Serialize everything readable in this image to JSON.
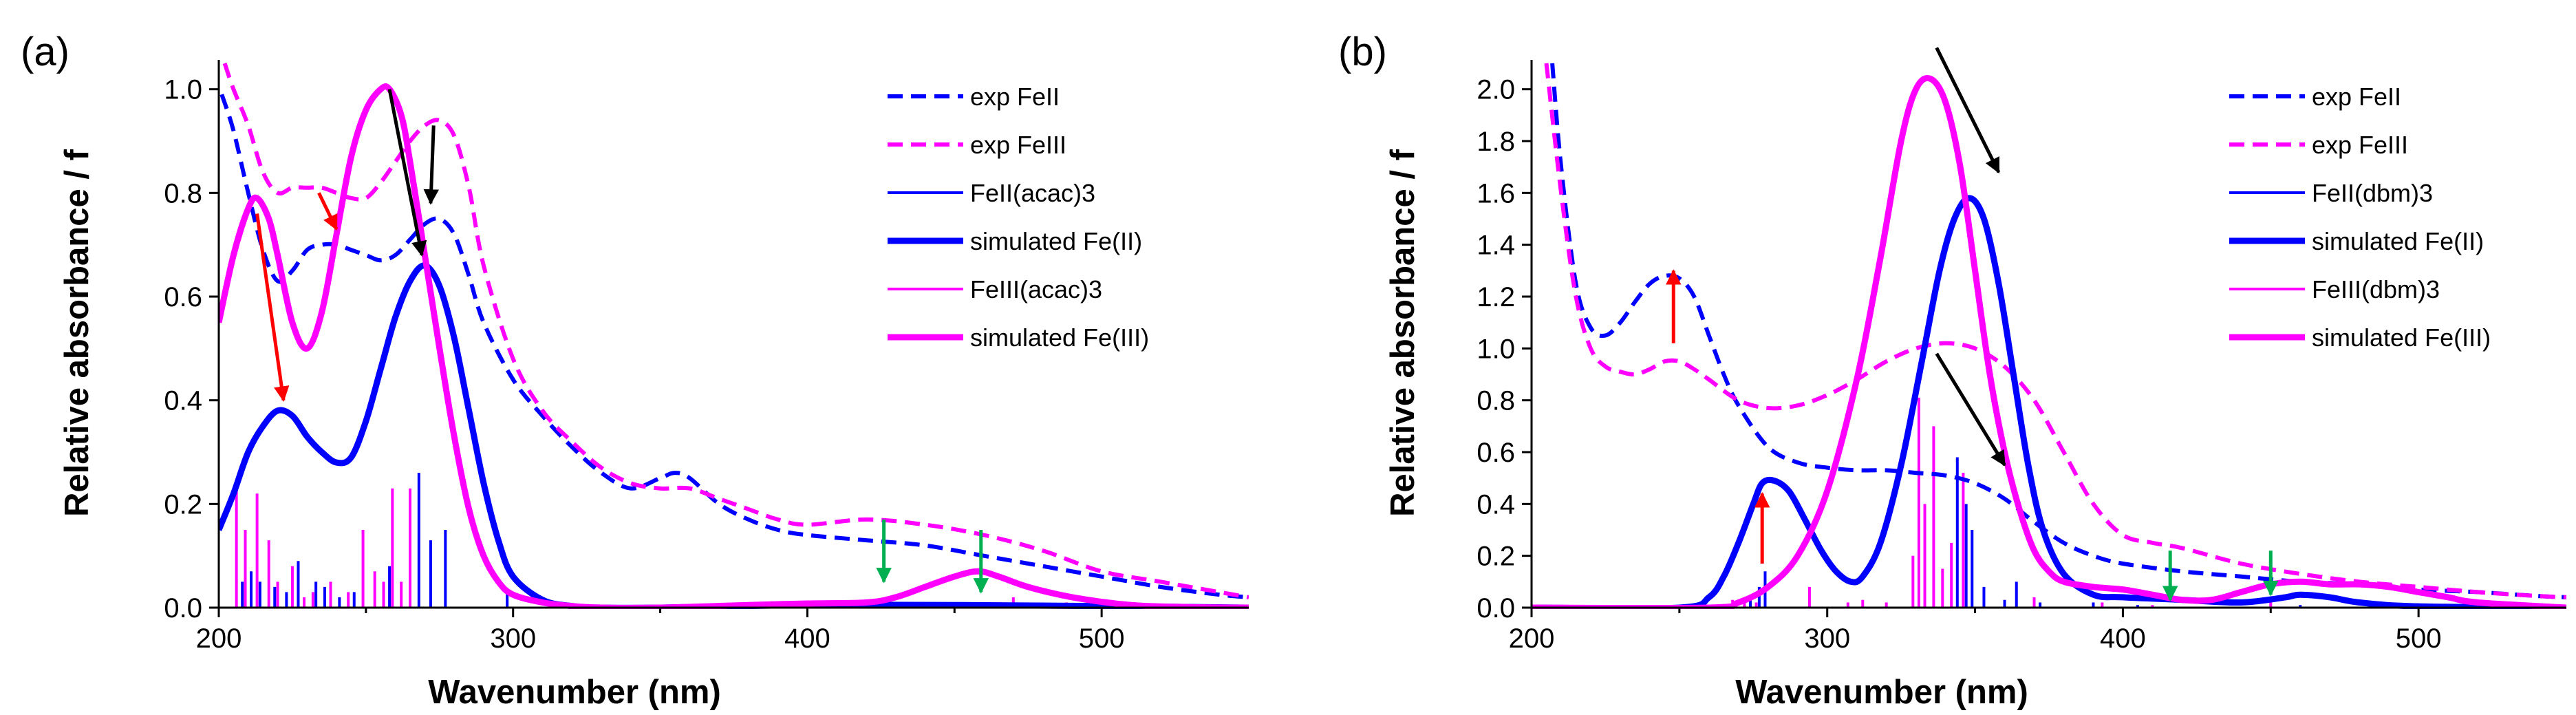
{
  "chart_data": [
    {
      "type": "line",
      "panel_label": "(a)",
      "xlabel": "Wavenumber (nm)",
      "ylabel": "Relative absorbance / f",
      "xlim": [
        200,
        550
      ],
      "ylim": [
        0,
        1.05
      ],
      "xticks": [
        "200",
        "300",
        "400",
        "500"
      ],
      "yticks": [
        "0.0",
        "0.2",
        "0.4",
        "0.6",
        "0.8",
        "1.0"
      ],
      "colors": {
        "fe2": "#0000ff",
        "fe3": "#ff00ff"
      },
      "legend": [
        {
          "label": "exp FeII",
          "style": "dashed",
          "color": "#0000ff"
        },
        {
          "label": "exp FeIII",
          "style": "dashed",
          "color": "#ff00ff"
        },
        {
          "label": "FeII(acac)3",
          "style": "thin",
          "color": "#0000ff"
        },
        {
          "label": "simulated Fe(II)",
          "style": "thick",
          "color": "#0000ff"
        },
        {
          "label": "FeIII(acac)3",
          "style": "thin",
          "color": "#ff00ff"
        },
        {
          "label": "simulated Fe(III)",
          "style": "thick",
          "color": "#ff00ff"
        }
      ],
      "series": [
        {
          "name": "exp FeII",
          "color": "#0000ff",
          "style": "dashed",
          "x": [
            201,
            205,
            210,
            215,
            220,
            225,
            230,
            235,
            240,
            245,
            250,
            255,
            260,
            265,
            270,
            275,
            280,
            285,
            290,
            300,
            310,
            320,
            330,
            340,
            350,
            355,
            360,
            370,
            380,
            390,
            400,
            420,
            440,
            460,
            480,
            500,
            520,
            540,
            550
          ],
          "y": [
            0.99,
            0.92,
            0.8,
            0.69,
            0.63,
            0.65,
            0.69,
            0.7,
            0.7,
            0.69,
            0.68,
            0.67,
            0.68,
            0.71,
            0.74,
            0.75,
            0.72,
            0.64,
            0.55,
            0.44,
            0.37,
            0.31,
            0.26,
            0.23,
            0.25,
            0.26,
            0.25,
            0.2,
            0.17,
            0.15,
            0.14,
            0.13,
            0.12,
            0.1,
            0.08,
            0.06,
            0.04,
            0.025,
            0.02
          ]
        },
        {
          "name": "exp FeIII",
          "color": "#ff00ff",
          "style": "dashed",
          "x": [
            202,
            205,
            210,
            215,
            220,
            225,
            230,
            235,
            240,
            245,
            250,
            255,
            260,
            265,
            270,
            275,
            280,
            285,
            290,
            300,
            310,
            320,
            330,
            340,
            350,
            360,
            370,
            380,
            390,
            400,
            420,
            440,
            460,
            480,
            500,
            520,
            540,
            550
          ],
          "y": [
            1.05,
            1.0,
            0.93,
            0.84,
            0.8,
            0.81,
            0.81,
            0.81,
            0.8,
            0.79,
            0.79,
            0.82,
            0.86,
            0.9,
            0.93,
            0.94,
            0.91,
            0.81,
            0.66,
            0.48,
            0.38,
            0.32,
            0.27,
            0.24,
            0.23,
            0.23,
            0.21,
            0.19,
            0.17,
            0.16,
            0.17,
            0.16,
            0.14,
            0.11,
            0.07,
            0.05,
            0.03,
            0.02
          ]
        },
        {
          "name": "simulated Fe(II)",
          "color": "#0000ff",
          "style": "thick",
          "x": [
            200,
            205,
            210,
            215,
            220,
            225,
            230,
            235,
            240,
            245,
            250,
            255,
            260,
            265,
            270,
            275,
            280,
            285,
            290,
            295,
            300,
            310,
            320,
            330,
            350,
            400,
            450,
            500,
            550
          ],
          "y": [
            0.15,
            0.22,
            0.3,
            0.35,
            0.38,
            0.37,
            0.33,
            0.3,
            0.28,
            0.29,
            0.36,
            0.46,
            0.56,
            0.63,
            0.66,
            0.62,
            0.52,
            0.38,
            0.24,
            0.13,
            0.06,
            0.015,
            0.003,
            0.0,
            0.0,
            0.005,
            0.005,
            0.003,
            0.0
          ]
        },
        {
          "name": "simulated Fe(III)",
          "color": "#ff00ff",
          "style": "thick",
          "x": [
            200,
            205,
            210,
            213,
            217,
            220,
            225,
            230,
            235,
            240,
            245,
            250,
            255,
            258,
            262,
            265,
            270,
            275,
            280,
            285,
            290,
            295,
            300,
            310,
            320,
            330,
            350,
            380,
            400,
            420,
            430,
            440,
            450,
            458,
            465,
            475,
            490,
            510,
            530,
            550
          ],
          "y": [
            0.55,
            0.68,
            0.77,
            0.79,
            0.75,
            0.68,
            0.55,
            0.5,
            0.57,
            0.72,
            0.87,
            0.96,
            1.0,
            1.0,
            0.95,
            0.86,
            0.68,
            0.5,
            0.33,
            0.19,
            0.1,
            0.05,
            0.025,
            0.01,
            0.003,
            0.0,
            0.0,
            0.005,
            0.008,
            0.01,
            0.02,
            0.04,
            0.06,
            0.07,
            0.06,
            0.04,
            0.02,
            0.005,
            0.001,
            0.0
          ]
        }
      ],
      "sticks": [
        {
          "series": "FeII(acac)3",
          "color": "#0000ff",
          "x": [
            208,
            211,
            214,
            219,
            223,
            227,
            233,
            236,
            241,
            246,
            258,
            268,
            272,
            277,
            298
          ],
          "f": [
            0.05,
            0.07,
            0.05,
            0.04,
            0.03,
            0.09,
            0.05,
            0.04,
            0.02,
            0.03,
            0.08,
            0.26,
            0.13,
            0.15,
            0.03
          ]
        },
        {
          "series": "FeIII(acac)3",
          "color": "#ff00ff",
          "x": [
            206,
            209,
            213,
            217,
            220,
            225,
            229,
            232,
            238,
            244,
            249,
            253,
            256,
            259,
            262,
            265,
            470,
            480,
            488
          ],
          "f": [
            0.23,
            0.15,
            0.22,
            0.13,
            0.05,
            0.08,
            0.02,
            0.03,
            0.05,
            0.03,
            0.15,
            0.07,
            0.05,
            0.23,
            0.05,
            0.23,
            0.02,
            0.01,
            0.01
          ]
        }
      ],
      "arrows": [
        {
          "color": "#ff0000",
          "from": [
            213,
            0.76
          ],
          "to": [
            222,
            0.4
          ]
        },
        {
          "color": "#ff0000",
          "from": [
            234,
            0.8
          ],
          "to": [
            240,
            0.73
          ]
        },
        {
          "color": "#000000",
          "from": [
            258,
            1.0
          ],
          "to": [
            269,
            0.68
          ]
        },
        {
          "color": "#000000",
          "from": [
            273,
            0.93
          ],
          "to": [
            272,
            0.78
          ]
        },
        {
          "color": "#00b050",
          "from": [
            426,
            0.17
          ],
          "to": [
            426,
            0.05
          ]
        },
        {
          "color": "#00b050",
          "from": [
            459,
            0.15
          ],
          "to": [
            459,
            0.03
          ]
        }
      ]
    },
    {
      "type": "line",
      "panel_label": "(b)",
      "xlabel": "Wavenumber (nm)",
      "ylabel": "Relative absorbance / f",
      "xlim": [
        200,
        550
      ],
      "ylim": [
        0,
        2.1
      ],
      "xticks": [
        "200",
        "300",
        "400",
        "500"
      ],
      "yticks": [
        "0.0",
        "0.2",
        "0.4",
        "0.6",
        "0.8",
        "1.0",
        "1.2",
        "1.4",
        "1.6",
        "1.8",
        "2.0"
      ],
      "colors": {
        "fe2": "#0000ff",
        "fe3": "#ff00ff"
      },
      "legend": [
        {
          "label": "exp FeII",
          "style": "dashed",
          "color": "#0000ff"
        },
        {
          "label": "exp FeIII",
          "style": "dashed",
          "color": "#ff00ff"
        },
        {
          "label": "FeII(dbm)3",
          "style": "thin",
          "color": "#0000ff"
        },
        {
          "label": "simulated Fe(II)",
          "style": "thick",
          "color": "#0000ff"
        },
        {
          "label": "FeIII(dbm)3",
          "style": "thin",
          "color": "#ff00ff"
        },
        {
          "label": "simulated Fe(III)",
          "style": "thick",
          "color": "#ff00ff"
        }
      ],
      "series": [
        {
          "name": "exp FeII",
          "color": "#0000ff",
          "style": "dashed",
          "x": [
            207,
            210,
            215,
            220,
            225,
            230,
            235,
            240,
            245,
            250,
            255,
            260,
            265,
            270,
            280,
            290,
            300,
            310,
            320,
            330,
            340,
            350,
            360,
            370,
            380,
            390,
            400,
            420,
            440,
            460,
            480,
            500,
            520,
            540,
            550
          ],
          "y": [
            2.1,
            1.7,
            1.25,
            1.08,
            1.05,
            1.1,
            1.18,
            1.25,
            1.28,
            1.27,
            1.2,
            1.05,
            0.9,
            0.78,
            0.62,
            0.56,
            0.54,
            0.53,
            0.53,
            0.52,
            0.51,
            0.48,
            0.42,
            0.33,
            0.25,
            0.2,
            0.17,
            0.14,
            0.12,
            0.1,
            0.09,
            0.07,
            0.06,
            0.045,
            0.04
          ]
        },
        {
          "name": "exp FeIII",
          "color": "#ff00ff",
          "style": "dashed",
          "x": [
            205,
            210,
            215,
            220,
            225,
            230,
            235,
            240,
            245,
            250,
            255,
            260,
            270,
            280,
            290,
            300,
            310,
            320,
            330,
            340,
            350,
            360,
            370,
            380,
            390,
            400,
            410,
            420,
            440,
            460,
            480,
            500,
            520,
            540,
            550
          ],
          "y": [
            2.1,
            1.6,
            1.2,
            1.0,
            0.93,
            0.91,
            0.9,
            0.92,
            0.95,
            0.95,
            0.92,
            0.88,
            0.8,
            0.77,
            0.78,
            0.82,
            0.88,
            0.95,
            1.0,
            1.02,
            1.0,
            0.93,
            0.8,
            0.6,
            0.4,
            0.28,
            0.25,
            0.23,
            0.17,
            0.13,
            0.1,
            0.08,
            0.06,
            0.045,
            0.04
          ]
        },
        {
          "name": "simulated Fe(II)",
          "color": "#0000ff",
          "style": "thick",
          "x": [
            200,
            250,
            260,
            265,
            270,
            275,
            278,
            282,
            287,
            292,
            298,
            303,
            308,
            312,
            318,
            325,
            332,
            338,
            343,
            348,
            353,
            358,
            363,
            368,
            373,
            380,
            390,
            400,
            420,
            440,
            455,
            460,
            470,
            480,
            500,
            550
          ],
          "y": [
            0.0,
            0.0,
            0.04,
            0.12,
            0.25,
            0.4,
            0.48,
            0.49,
            0.45,
            0.35,
            0.22,
            0.14,
            0.1,
            0.12,
            0.25,
            0.55,
            0.95,
            1.3,
            1.5,
            1.58,
            1.5,
            1.25,
            0.9,
            0.55,
            0.3,
            0.13,
            0.05,
            0.04,
            0.03,
            0.02,
            0.04,
            0.05,
            0.04,
            0.02,
            0.005,
            0.0
          ]
        },
        {
          "name": "simulated Fe(III)",
          "color": "#ff00ff",
          "style": "thick",
          "x": [
            200,
            260,
            270,
            280,
            290,
            300,
            310,
            318,
            325,
            330,
            335,
            340,
            345,
            350,
            355,
            360,
            365,
            370,
            375,
            380,
            390,
            400,
            410,
            420,
            430,
            440,
            450,
            460,
            470,
            480,
            490,
            500,
            510,
            520,
            550
          ],
          "y": [
            0.0,
            0.0,
            0.02,
            0.08,
            0.2,
            0.45,
            0.88,
            1.35,
            1.8,
            2.0,
            2.04,
            1.95,
            1.7,
            1.3,
            0.9,
            0.6,
            0.38,
            0.22,
            0.14,
            0.1,
            0.08,
            0.07,
            0.05,
            0.03,
            0.03,
            0.06,
            0.09,
            0.1,
            0.09,
            0.09,
            0.08,
            0.06,
            0.04,
            0.02,
            0.0
          ]
        }
      ],
      "sticks": [
        {
          "series": "FeII(dbm)3",
          "color": "#0000ff",
          "x": [
            274,
            277,
            279,
            344,
            347,
            349,
            353,
            360,
            364,
            372,
            390,
            405,
            460
          ],
          "f": [
            0.05,
            0.08,
            0.14,
            0.58,
            0.4,
            0.3,
            0.08,
            0.03,
            0.1,
            0.02,
            0.02,
            0.01,
            0.01
          ]
        },
        {
          "series": "FeIII(dbm)3",
          "color": "#ff00ff",
          "x": [
            268,
            272,
            276,
            294,
            307,
            312,
            320,
            329,
            331,
            333,
            336,
            339,
            342,
            346,
            370,
            393,
            410,
            450,
            488
          ],
          "f": [
            0.03,
            0.04,
            0.02,
            0.08,
            0.02,
            0.03,
            0.02,
            0.2,
            0.81,
            0.4,
            0.7,
            0.15,
            0.25,
            0.52,
            0.04,
            0.02,
            0.01,
            0.02,
            0.01
          ]
        }
      ],
      "arrows": [
        {
          "color": "#ff0000",
          "from": [
            248,
            1.02
          ],
          "to": [
            248,
            1.3
          ]
        },
        {
          "color": "#ff0000",
          "from": [
            278,
            0.17
          ],
          "to": [
            278,
            0.44
          ]
        },
        {
          "color": "#000000",
          "from": [
            337,
            2.16
          ],
          "to": [
            358,
            1.68
          ]
        },
        {
          "color": "#000000",
          "from": [
            337,
            0.98
          ],
          "to": [
            360,
            0.55
          ]
        },
        {
          "color": "#00b050",
          "from": [
            416,
            0.22
          ],
          "to": [
            416,
            0.03
          ]
        },
        {
          "color": "#00b050",
          "from": [
            450,
            0.22
          ],
          "to": [
            450,
            0.05
          ]
        }
      ]
    }
  ]
}
